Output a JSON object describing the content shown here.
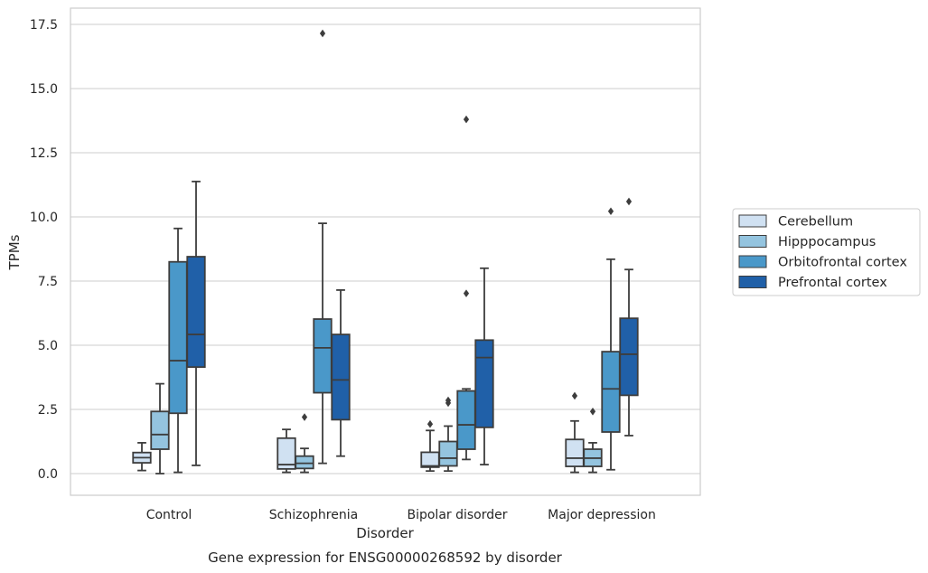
{
  "chart_data": {
    "type": "box",
    "title": "Gene expression for ENSG00000268592 by disorder",
    "xlabel": "Disorder",
    "ylabel": "TPMs",
    "ylim": [
      -0.8,
      18.1
    ],
    "yticks": [
      "0.0",
      "2.5",
      "5.0",
      "7.5",
      "10.0",
      "12.5",
      "15.0",
      "17.5"
    ],
    "ytick_values": [
      0,
      2.5,
      5,
      7.5,
      10,
      12.5,
      15,
      17.5
    ],
    "grid": "horizontal",
    "legend_position": "right",
    "categories": [
      "Control",
      "Schizophrenia",
      "Bipolar disorder",
      "Major depression"
    ],
    "series": [
      {
        "name": "Cerebellum",
        "color": "#d0e1f2",
        "boxes": [
          {
            "whislo": 0.12,
            "q1": 0.42,
            "med": 0.62,
            "q3": 0.82,
            "whishi": 1.2,
            "fliers": []
          },
          {
            "whislo": 0.05,
            "q1": 0.18,
            "med": 0.35,
            "q3": 1.38,
            "whishi": 1.72,
            "fliers": []
          },
          {
            "whislo": 0.1,
            "q1": 0.25,
            "med": 0.3,
            "q3": 0.83,
            "whishi": 1.68,
            "fliers": [
              1.93
            ]
          },
          {
            "whislo": 0.05,
            "q1": 0.28,
            "med": 0.6,
            "q3": 1.33,
            "whishi": 2.05,
            "fliers": [
              3.03
            ]
          }
        ]
      },
      {
        "name": "Hipppocampus",
        "color": "#94c4df",
        "boxes": [
          {
            "whislo": 0.0,
            "q1": 0.95,
            "med": 1.52,
            "q3": 2.42,
            "whishi": 3.5,
            "fliers": []
          },
          {
            "whislo": 0.05,
            "q1": 0.2,
            "med": 0.4,
            "q3": 0.68,
            "whishi": 0.98,
            "fliers": [
              2.2
            ]
          },
          {
            "whislo": 0.1,
            "q1": 0.3,
            "med": 0.6,
            "q3": 1.25,
            "whishi": 1.85,
            "fliers": [
              2.75,
              2.85
            ]
          },
          {
            "whislo": 0.05,
            "q1": 0.28,
            "med": 0.6,
            "q3": 0.95,
            "whishi": 1.2,
            "fliers": [
              2.42
            ]
          }
        ]
      },
      {
        "name": "Orbitofrontal cortex",
        "color": "#4a98c9",
        "boxes": [
          {
            "whislo": 0.05,
            "q1": 2.35,
            "med": 4.4,
            "q3": 8.25,
            "whishi": 9.55,
            "fliers": []
          },
          {
            "whislo": 0.4,
            "q1": 3.15,
            "med": 4.9,
            "q3": 6.02,
            "whishi": 9.75,
            "fliers": [
              17.15
            ]
          },
          {
            "whislo": 0.55,
            "q1": 0.95,
            "med": 1.9,
            "q3": 3.22,
            "whishi": 3.3,
            "fliers": [
              7.02,
              13.8
            ]
          },
          {
            "whislo": 0.15,
            "q1": 1.62,
            "med": 3.3,
            "q3": 4.75,
            "whishi": 8.35,
            "fliers": [
              10.22
            ]
          }
        ]
      },
      {
        "name": "Prefrontal cortex",
        "color": "#2060a8",
        "boxes": [
          {
            "whislo": 0.32,
            "q1": 4.15,
            "med": 5.42,
            "q3": 8.45,
            "whishi": 11.38,
            "fliers": []
          },
          {
            "whislo": 0.68,
            "q1": 2.1,
            "med": 3.65,
            "q3": 5.42,
            "whishi": 7.15,
            "fliers": []
          },
          {
            "whislo": 0.35,
            "q1": 1.8,
            "med": 4.52,
            "q3": 5.2,
            "whishi": 8.0,
            "fliers": []
          },
          {
            "whislo": 1.48,
            "q1": 3.05,
            "med": 4.65,
            "q3": 6.05,
            "whishi": 7.95,
            "fliers": [
              10.6
            ]
          }
        ]
      }
    ]
  }
}
